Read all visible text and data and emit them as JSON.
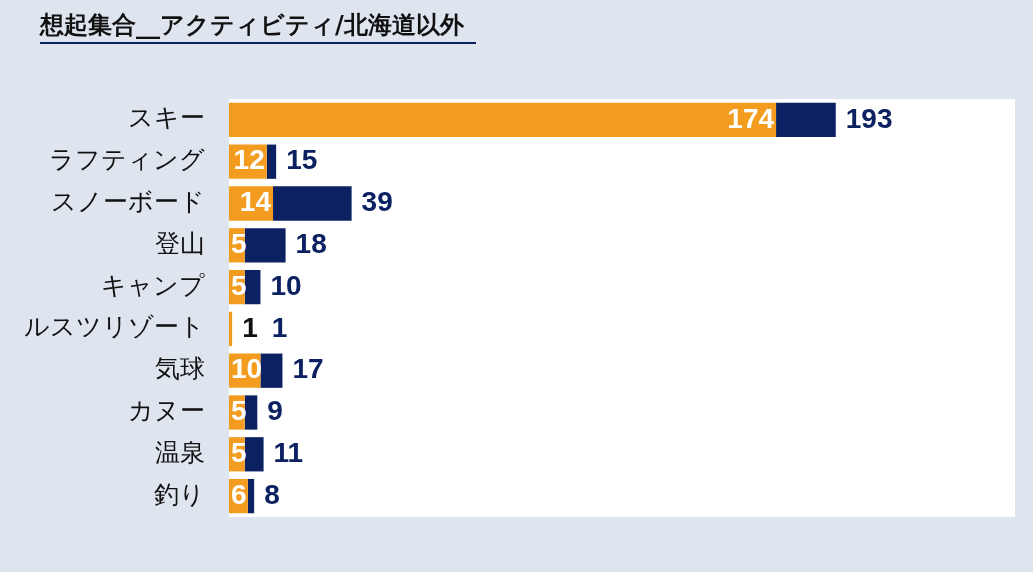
{
  "chart_data": {
    "type": "bar",
    "title": "想起集合__アクティビティ/北海道以外",
    "orientation": "horizontal",
    "stacked": true,
    "categories": [
      "スキー",
      "ラフティング",
      "スノーボード",
      "登山",
      "キャンプ",
      "ルスツリゾート",
      "気球",
      "カヌー",
      "温泉",
      "釣り"
    ],
    "series": [
      {
        "color": "#f49c1f",
        "values": [
          174,
          12,
          14,
          5,
          5,
          1,
          10,
          5,
          5,
          6
        ],
        "value_labels": [
          "174",
          "12",
          "14",
          "5",
          "5",
          "1",
          "10",
          "5",
          "5",
          "6"
        ]
      },
      {
        "color": "#0c2161",
        "values": [
          19,
          3,
          25,
          13,
          5,
          0,
          7,
          4,
          6,
          2
        ]
      }
    ],
    "totals": [
      "193",
      "15",
      "39",
      "18",
      "10",
      "1",
      "17",
      "9",
      "11",
      "8"
    ],
    "xlim": [
      0,
      250
    ],
    "legend": false
  }
}
